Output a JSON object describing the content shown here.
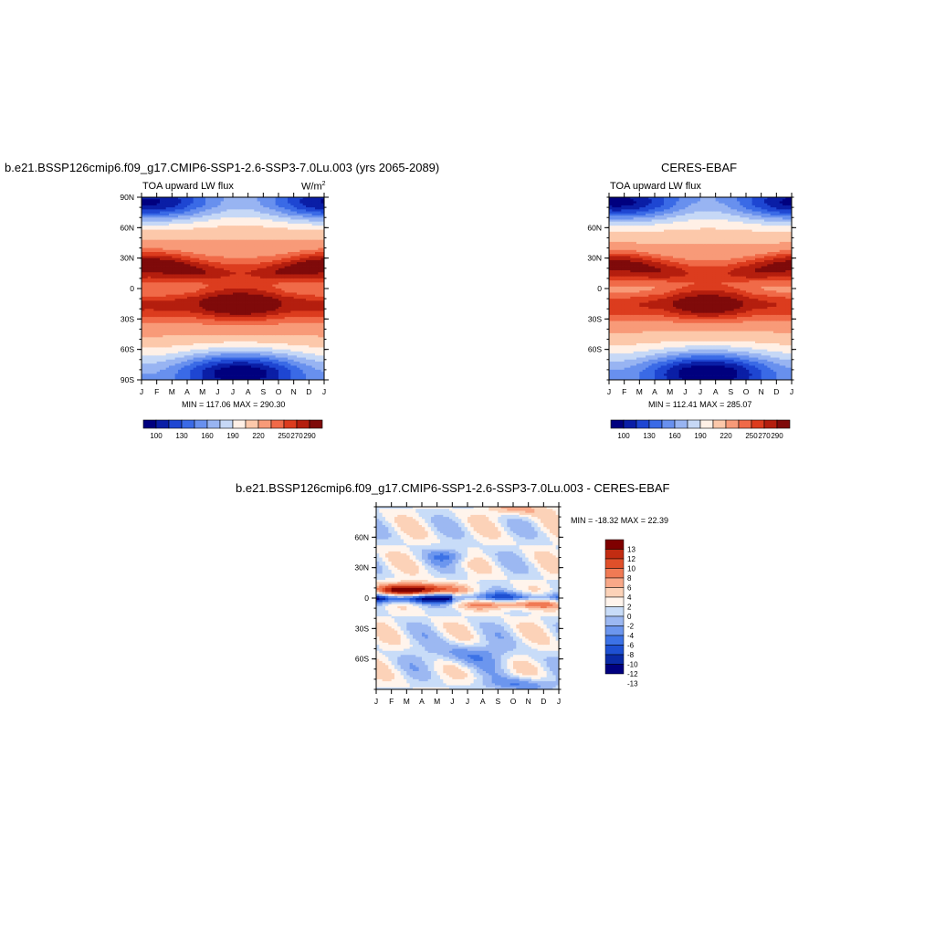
{
  "colors": {
    "abs": [
      "#00007f",
      "#0a1ea6",
      "#1e46d2",
      "#3a6ae6",
      "#6890ee",
      "#98b4f2",
      "#c6d8f6",
      "#fff0e6",
      "#fcc8aa",
      "#f89a78",
      "#f06a48",
      "#dc3c1e",
      "#b41e0e",
      "#7f0a0a"
    ],
    "diff": [
      "#00007f",
      "#0a2aa6",
      "#1e50d2",
      "#3c72e6",
      "#6c96ee",
      "#9cb8f2",
      "#c8dcf8",
      "#fff4ec",
      "#fcd2b8",
      "#f8a888",
      "#f07a54",
      "#e0502a",
      "#c22c12",
      "#7f0000"
    ]
  },
  "chart_data": [
    {
      "type": "heatmap",
      "title": "b.e21.BSSP126cmip6.f09_g17.CMIP6-SSP1-2.6-SSP3-7.0Lu.003 (yrs 2065-2089)",
      "left_label": "TOA upward LW flux",
      "units": "W/m",
      "units_sup": "2",
      "stats": "MIN = 117.06 MAX = 290.30",
      "x_ticks": [
        "J",
        "F",
        "M",
        "A",
        "M",
        "J",
        "J",
        "A",
        "S",
        "O",
        "N",
        "D",
        "J"
      ],
      "y_ticks": [
        "90N",
        "60N",
        "30N",
        "0",
        "30S",
        "60S",
        "90S"
      ],
      "y_values": [
        90,
        60,
        30,
        0,
        -30,
        -60,
        -90
      ],
      "ylim": [
        -90,
        90
      ],
      "levels": [
        100,
        115,
        130,
        145,
        160,
        175,
        190,
        205,
        220,
        235,
        250,
        260,
        270,
        280,
        290
      ],
      "colorbar_labels": [
        "100",
        "130",
        "160",
        "190",
        "220",
        "250",
        "270",
        "290"
      ]
    },
    {
      "type": "heatmap",
      "title": "CERES-EBAF",
      "left_label": "TOA upward LW flux",
      "stats": "MIN = 112.41 MAX = 285.07",
      "x_ticks": [
        "J",
        "F",
        "M",
        "A",
        "M",
        "J",
        "J",
        "A",
        "S",
        "O",
        "N",
        "D",
        "J"
      ],
      "y_ticks": [
        "60N",
        "30N",
        "0",
        "30S",
        "60S"
      ],
      "y_values": [
        60,
        30,
        0,
        -30,
        -60
      ],
      "ylim": [
        -90,
        90
      ],
      "levels": [
        100,
        115,
        130,
        145,
        160,
        175,
        190,
        205,
        220,
        235,
        250,
        260,
        270,
        280,
        290
      ],
      "colorbar_labels": [
        "100",
        "130",
        "160",
        "190",
        "220",
        "250",
        "270",
        "290"
      ]
    },
    {
      "type": "heatmap",
      "title": "b.e21.BSSP126cmip6.f09_g17.CMIP6-SSP1-2.6-SSP3-7.0Lu.003 - CERES-EBAF",
      "stats": "MIN = -18.32 MAX =  22.39",
      "x_ticks": [
        "J",
        "F",
        "M",
        "A",
        "M",
        "J",
        "J",
        "A",
        "S",
        "O",
        "N",
        "D",
        "J"
      ],
      "y_ticks": [
        "60N",
        "30N",
        "0",
        "30S",
        "60S"
      ],
      "y_values": [
        60,
        30,
        0,
        -30,
        -60
      ],
      "ylim": [
        -90,
        90
      ],
      "levels": [
        -13,
        -12,
        -10,
        -8,
        -6,
        -4,
        -2,
        0,
        2,
        4,
        6,
        8,
        10,
        12,
        13
      ],
      "colorbar_labels": [
        "13",
        "12",
        "10",
        "8",
        "6",
        "4",
        "2",
        "0",
        "-2",
        "-4",
        "-6",
        "-8",
        "-10",
        "-12",
        "-13"
      ]
    }
  ]
}
